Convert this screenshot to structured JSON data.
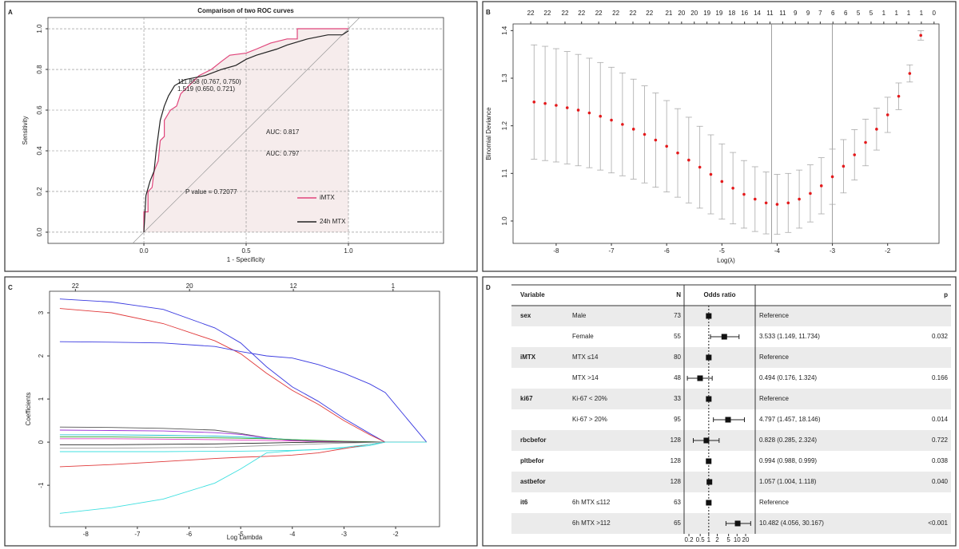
{
  "chart_data": [
    {
      "type": "roc",
      "panel": "A",
      "title": "Comparison of two ROC curves",
      "xlabel": "1 - Specificity",
      "ylabel": "Sensitivity",
      "xlim": [
        -0.469,
        1.465
      ],
      "ylim": [
        -0.055,
        1.055
      ],
      "xticks": [
        {
          "value": 0,
          "label": "0.0"
        },
        0.5,
        {
          "value": 1,
          "label": "1.0"
        }
      ],
      "yticks": [
        {
          "value": 0,
          "label": "0.0"
        },
        0.2,
        0.4,
        0.6,
        0.8,
        {
          "value": 1,
          "label": "1.0"
        }
      ],
      "grid": true,
      "series": [
        {
          "name": "iMTX",
          "color": "#e0457b",
          "x": [
            0,
            0,
            0.02,
            0.02,
            0.04,
            0.05,
            0.07,
            0.08,
            0.1,
            0.1,
            0.13,
            0.16,
            0.18,
            0.22,
            0.27,
            0.33,
            0.38,
            0.42,
            0.5,
            0.55,
            0.62,
            0.7,
            0.75,
            0.75,
            1
          ],
          "values": [
            0,
            0.1,
            0.1,
            0.2,
            0.22,
            0.3,
            0.35,
            0.45,
            0.47,
            0.55,
            0.6,
            0.62,
            0.68,
            0.72,
            0.77,
            0.8,
            0.84,
            0.87,
            0.88,
            0.9,
            0.93,
            0.95,
            0.95,
            1,
            1
          ]
        },
        {
          "name": "24h MTX",
          "color": "#222222",
          "x": [
            0,
            0.01,
            0.03,
            0.05,
            0.06,
            0.08,
            0.1,
            0.12,
            0.15,
            0.2,
            0.3,
            0.38,
            0.45,
            0.5,
            0.55,
            0.65,
            0.7,
            0.8,
            0.9,
            0.97,
            1
          ],
          "values": [
            0,
            0.18,
            0.25,
            0.3,
            0.4,
            0.55,
            0.62,
            0.67,
            0.72,
            0.75,
            0.77,
            0.8,
            0.82,
            0.85,
            0.87,
            0.9,
            0.92,
            0.95,
            0.97,
            0.97,
            0.99
          ]
        }
      ],
      "annotations": [
        "111.858 (0.767, 0.750)",
        "1.519 (0.650, 0.721)",
        "AUC: 0.817",
        "AUC: 0.797",
        "P value = 0.72077"
      ]
    },
    {
      "type": "errorbar",
      "panel": "B",
      "xlabel": "Log(λ)",
      "ylabel": "Binomial Deviance",
      "xlim": [
        -8.78,
        -1.07
      ],
      "ylim": [
        0.953,
        1.414
      ],
      "xticks": [
        -8,
        -7,
        -6,
        -5,
        -4,
        -3,
        -2
      ],
      "yticks": [
        {
          "value": 1,
          "label": "1.0"
        },
        1.1,
        1.2,
        1.3,
        1.4
      ],
      "top_ticks": [
        {
          "value": -8.46,
          "label": "22"
        },
        {
          "value": -8.16,
          "label": "22"
        },
        {
          "value": -7.84,
          "label": "22"
        },
        {
          "value": -7.54,
          "label": "22"
        },
        {
          "value": -7.23,
          "label": "22"
        },
        {
          "value": -6.92,
          "label": "22"
        },
        {
          "value": -6.61,
          "label": "22"
        },
        {
          "value": -6.31,
          "label": "22"
        },
        {
          "value": -5.96,
          "label": "21"
        },
        {
          "value": -5.73,
          "label": "20"
        },
        {
          "value": -5.5,
          "label": "20"
        },
        {
          "value": -5.27,
          "label": "19"
        },
        {
          "value": -5.05,
          "label": "19"
        },
        {
          "value": -4.82,
          "label": "18"
        },
        {
          "value": -4.59,
          "label": "16"
        },
        {
          "value": -4.36,
          "label": "14"
        },
        {
          "value": -4.13,
          "label": "11"
        },
        {
          "value": -3.9,
          "label": "11"
        },
        {
          "value": -3.67,
          "label": "9"
        },
        {
          "value": -3.44,
          "label": "9"
        },
        {
          "value": -3.22,
          "label": "7"
        },
        {
          "value": -2.99,
          "label": "6"
        },
        {
          "value": -2.76,
          "label": "6"
        },
        {
          "value": -2.53,
          "label": "5"
        },
        {
          "value": -2.3,
          "label": "5"
        },
        {
          "value": -2.07,
          "label": "1"
        },
        {
          "value": -1.84,
          "label": "1"
        },
        {
          "value": -1.62,
          "label": "1"
        },
        {
          "value": -1.39,
          "label": "1"
        },
        {
          "value": -1.16,
          "label": "0"
        }
      ],
      "vlines": [
        -4.1,
        -3.0
      ],
      "color": "#e41a1c",
      "x": [
        -8.4,
        -8.2,
        -8.0,
        -7.8,
        -7.6,
        -7.4,
        -7.2,
        -7.0,
        -6.8,
        -6.6,
        -6.4,
        -6.2,
        -6.0,
        -5.8,
        -5.6,
        -5.4,
        -5.2,
        -5.0,
        -4.8,
        -4.6,
        -4.4,
        -4.2,
        -4.0,
        -3.8,
        -3.6,
        -3.4,
        -3.2,
        -3.0,
        -2.8,
        -2.6,
        -2.4,
        -2.2,
        -2.0,
        -1.8,
        -1.6,
        -1.4
      ],
      "values": [
        1.25,
        1.247,
        1.243,
        1.238,
        1.233,
        1.227,
        1.22,
        1.212,
        1.203,
        1.193,
        1.182,
        1.17,
        1.157,
        1.143,
        1.128,
        1.113,
        1.098,
        1.083,
        1.069,
        1.056,
        1.046,
        1.038,
        1.035,
        1.038,
        1.046,
        1.058,
        1.074,
        1.093,
        1.115,
        1.139,
        1.165,
        1.193,
        1.223,
        1.262,
        1.31,
        1.39
      ],
      "errors": [
        0.12,
        0.12,
        0.119,
        0.118,
        0.117,
        0.115,
        0.113,
        0.111,
        0.108,
        0.105,
        0.102,
        0.099,
        0.096,
        0.093,
        0.09,
        0.086,
        0.083,
        0.079,
        0.075,
        0.071,
        0.068,
        0.065,
        0.063,
        0.062,
        0.061,
        0.06,
        0.059,
        0.058,
        0.056,
        0.053,
        0.049,
        0.044,
        0.037,
        0.028,
        0.018,
        0.01
      ]
    },
    {
      "type": "line",
      "panel": "C",
      "xlabel": "Log Lambda",
      "ylabel": "Coefficients",
      "xlim": [
        -8.7,
        -1.15
      ],
      "ylim": [
        -1.96,
        3.5
      ],
      "xticks": [
        -8,
        -7,
        -6,
        -5,
        -4,
        -3,
        -2
      ],
      "yticks": [
        -1,
        0,
        1,
        2,
        3
      ],
      "top_ticks": [
        {
          "value": -8.2,
          "label": "22"
        },
        {
          "value": -5.99,
          "label": "20"
        },
        {
          "value": -3.98,
          "label": "12"
        },
        {
          "value": -2.05,
          "label": "1"
        }
      ],
      "x": [
        -8.5,
        -7.5,
        -6.5,
        -5.5,
        -5,
        -4.5,
        -4,
        -3.5,
        -3,
        -2.5,
        -2.2,
        -1.4
      ],
      "series": [
        {
          "color": "#3a3ae0",
          "values": [
            3.32,
            3.25,
            3.08,
            2.65,
            2.3,
            1.75,
            1.28,
            0.95,
            0.55,
            0.2,
            0,
            0
          ]
        },
        {
          "color": "#e0393a",
          "values": [
            3.1,
            3.0,
            2.75,
            2.35,
            2.05,
            1.6,
            1.2,
            0.88,
            0.5,
            0.17,
            0,
            0
          ]
        },
        {
          "color": "#3a3ae0",
          "values": [
            2.33,
            2.32,
            2.3,
            2.22,
            2.1,
            2.0,
            1.95,
            1.8,
            1.6,
            1.35,
            1.15,
            0
          ]
        },
        {
          "color": "#555555",
          "values": [
            0.35,
            0.34,
            0.32,
            0.28,
            0.2,
            0.1,
            0.05,
            0.02,
            0,
            0,
            0,
            0
          ]
        },
        {
          "color": "#9b30d9",
          "values": [
            0.28,
            0.27,
            0.26,
            0.22,
            0.18,
            0.1,
            0.04,
            0.01,
            0,
            0,
            0,
            0
          ]
        },
        {
          "color": "#20c0d0",
          "values": [
            0.17,
            0.17,
            0.16,
            0.14,
            0.12,
            0.09,
            0.06,
            0.03,
            0.01,
            0,
            0,
            0
          ]
        },
        {
          "color": "#2ca02c",
          "values": [
            0.12,
            0.12,
            0.11,
            0.1,
            0.09,
            0.08,
            0.06,
            0.04,
            0.02,
            0.01,
            0,
            0
          ]
        },
        {
          "color": "#e040c0",
          "values": [
            0.08,
            0.08,
            0.07,
            0.06,
            0.05,
            0.04,
            0.03,
            0.02,
            0.01,
            0,
            0,
            0
          ]
        },
        {
          "color": "#222222",
          "values": [
            -0.06,
            -0.06,
            -0.05,
            -0.04,
            -0.03,
            -0.02,
            -0.01,
            0,
            0,
            0,
            0,
            0
          ]
        },
        {
          "color": "#999999",
          "values": [
            -0.14,
            -0.14,
            -0.13,
            -0.12,
            -0.1,
            -0.08,
            -0.06,
            -0.04,
            -0.02,
            -0.01,
            0,
            0
          ]
        },
        {
          "color": "#40e0e0",
          "values": [
            -0.22,
            -0.22,
            -0.22,
            -0.21,
            -0.21,
            -0.2,
            -0.19,
            -0.17,
            -0.14,
            -0.08,
            0,
            0
          ]
        },
        {
          "color": "#e0393a",
          "values": [
            -0.57,
            -0.52,
            -0.45,
            -0.38,
            -0.35,
            -0.33,
            -0.3,
            -0.25,
            -0.15,
            -0.05,
            0,
            0
          ]
        },
        {
          "color": "#40e0e0",
          "values": [
            -1.65,
            -1.52,
            -1.32,
            -0.95,
            -0.62,
            -0.25,
            -0.2,
            -0.17,
            -0.12,
            -0.05,
            0,
            0
          ]
        }
      ]
    },
    {
      "type": "forest",
      "panel": "D",
      "log": true,
      "headers": [
        "Variable",
        "N",
        "Odds ratio",
        "p"
      ],
      "xlim": [
        0.135,
        43.6
      ],
      "xticks": [
        0.2,
        0.5,
        1,
        2,
        5,
        10,
        20
      ],
      "rows": [
        {
          "variable": "sex",
          "level": "Male",
          "n": 73,
          "or": 1,
          "estimate": "Reference"
        },
        {
          "level": "Female",
          "n": 55,
          "or": 3.533,
          "lo": 1.149,
          "hi": 11.734,
          "estimate": "3.533 (1.149, 11.734)",
          "p": "0.032"
        },
        {
          "variable": "iMTX",
          "level": "MTX ≤14",
          "n": 80,
          "or": 1,
          "estimate": "Reference"
        },
        {
          "level": "MTX >14",
          "n": 48,
          "or": 0.494,
          "lo": 0.176,
          "hi": 1.324,
          "estimate": "0.494 (0.176, 1.324)",
          "p": "0.166"
        },
        {
          "variable": "ki67",
          "level": "Ki-67 < 20%",
          "n": 33,
          "or": 1,
          "estimate": "Reference"
        },
        {
          "level": "Ki-67 > 20%",
          "n": 95,
          "or": 4.797,
          "lo": 1.457,
          "hi": 18.146,
          "estimate": "4.797 (1.457, 18.146)",
          "p": "0.014"
        },
        {
          "variable": "rbcbefor",
          "n": 128,
          "or": 0.828,
          "lo": 0.285,
          "hi": 2.324,
          "estimate": "0.828 (0.285, 2.324)",
          "p": "0.722"
        },
        {
          "variable": "pltbefor",
          "n": 128,
          "or": 0.994,
          "lo": 0.988,
          "hi": 0.999,
          "estimate": "0.994 (0.988, 0.999)",
          "p": "0.038"
        },
        {
          "variable": "astbefor",
          "n": 128,
          "or": 1.057,
          "lo": 1.004,
          "hi": 1.118,
          "estimate": "1.057 (1.004, 1.118)",
          "p": "0.040"
        },
        {
          "variable": "it6",
          "level": "6h MTX ≤112",
          "n": 63,
          "or": 1,
          "estimate": "Reference"
        },
        {
          "level": "6h MTX >112",
          "n": 65,
          "or": 10.482,
          "lo": 4.056,
          "hi": 30.167,
          "estimate": "10.482 (4.056, 30.167)",
          "p": "<0.001"
        }
      ]
    }
  ]
}
